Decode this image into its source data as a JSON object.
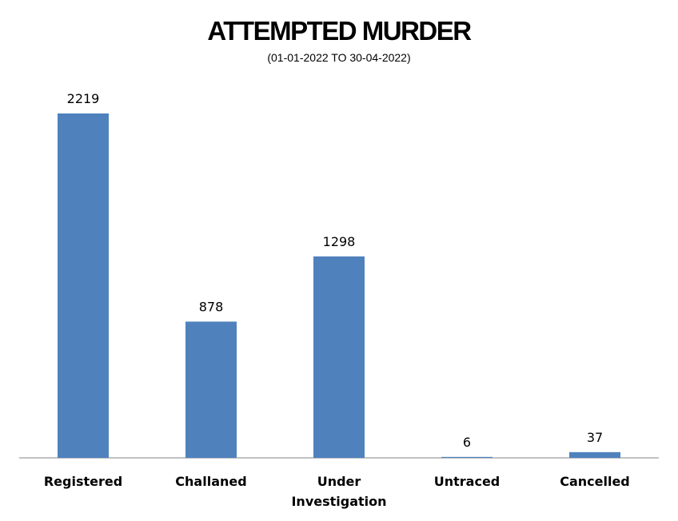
{
  "chart_data": {
    "type": "bar",
    "title": "ATTEMPTED MURDER",
    "subtitle": "(01-01-2022 TO 30-04-2022)",
    "categories": [
      [
        "Registered"
      ],
      [
        "Challaned"
      ],
      [
        "Under",
        "Investigation"
      ],
      [
        "Untraced"
      ],
      [
        "Cancelled"
      ]
    ],
    "values": [
      2219,
      878,
      1298,
      6,
      37
    ],
    "data_labels": [
      "2219",
      "878",
      "1298",
      "6",
      "37"
    ],
    "bar_color": "#4F81BD",
    "axis_color": "#868686",
    "ylim": [
      0,
      2219
    ],
    "grid": false,
    "legend": "none"
  }
}
